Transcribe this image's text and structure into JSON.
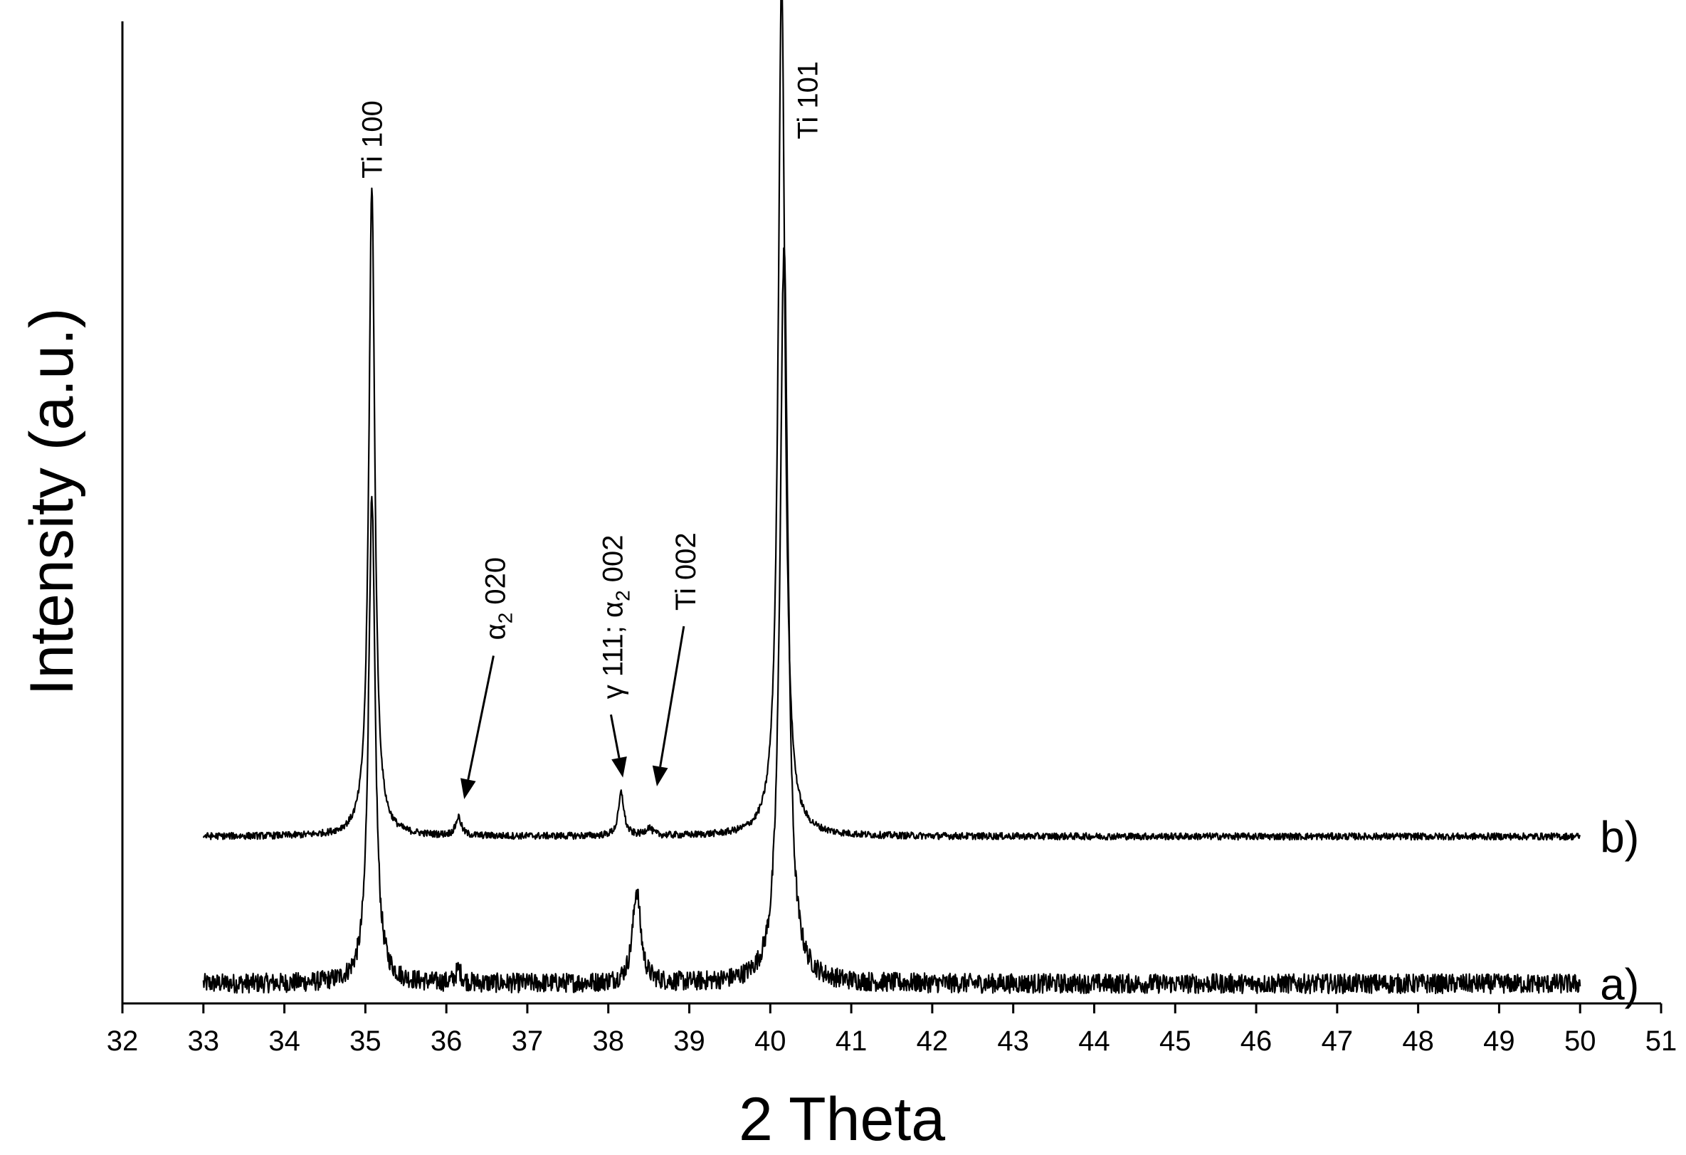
{
  "chart_data": {
    "type": "line",
    "xlabel": "2 Theta",
    "ylabel": "Intensity (a.u.)",
    "xlim": [
      32,
      51
    ],
    "ylim": [
      0,
      100
    ],
    "x_ticks": [
      "32",
      "33",
      "34",
      "35",
      "36",
      "37",
      "38",
      "39",
      "40",
      "41",
      "42",
      "43",
      "44",
      "45",
      "46",
      "47",
      "48",
      "49",
      "50",
      "51"
    ],
    "y_ticks_shown": false,
    "x_range": [
      33,
      50
    ],
    "series": [
      {
        "name": "a)",
        "baseline": 2,
        "noise": 1.0,
        "peaks": [
          {
            "x": 35.08,
            "height": 49,
            "width": 0.05
          },
          {
            "x": 36.15,
            "height": 1.4,
            "width": 0.04
          },
          {
            "x": 38.35,
            "height": 9.5,
            "width": 0.06
          },
          {
            "x": 40.17,
            "height": 75,
            "width": 0.06
          }
        ]
      },
      {
        "name": "b)",
        "baseline": 17,
        "noise": 0.35,
        "peaks": [
          {
            "x": 35.08,
            "height": 66,
            "width": 0.045
          },
          {
            "x": 36.15,
            "height": 1.9,
            "width": 0.04
          },
          {
            "x": 38.16,
            "height": 4.4,
            "width": 0.04
          },
          {
            "x": 38.5,
            "height": 0.8,
            "width": 0.05
          },
          {
            "x": 40.14,
            "height": 88,
            "width": 0.05
          }
        ]
      }
    ],
    "annotations": [
      {
        "text": "Ti 100",
        "x": 35.08,
        "y": 84,
        "arrow": false
      },
      {
        "text": "Ti 101",
        "x": 40.46,
        "y": 88,
        "arrow": false
      },
      {
        "text_main": "α",
        "sub": "2",
        "rest": " 020",
        "x": 36.6,
        "y": 37,
        "arrow": true,
        "arrow_to_x": 36.22,
        "arrow_to_y": 20.8
      },
      {
        "text_main": "γ 111; α",
        "sub": "2",
        "rest": " 002",
        "x": 38.05,
        "y": 31,
        "arrow": true,
        "arrow_to_x": 38.18,
        "arrow_to_y": 23
      },
      {
        "text": "Ti 002",
        "x": 38.95,
        "y": 40,
        "arrow": true,
        "arrow_to_x": 38.6,
        "arrow_to_y": 22.1
      }
    ]
  }
}
